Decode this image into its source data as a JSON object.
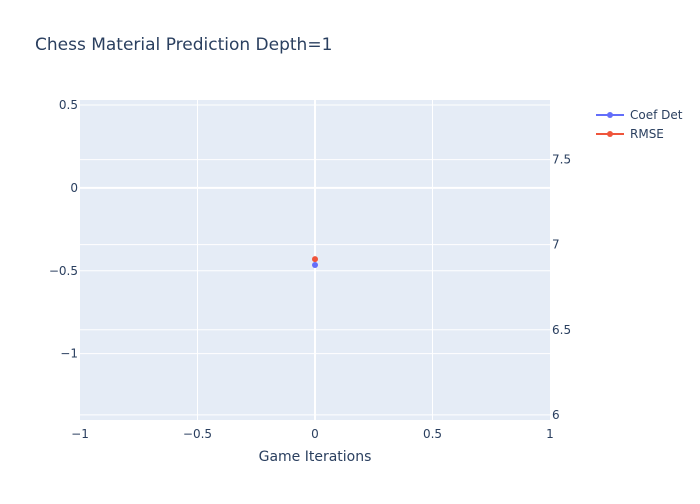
{
  "chart_data": {
    "type": "line",
    "title": "Chess Material Prediction Depth=1",
    "xlabel": "Game Iterations",
    "ylabel": "",
    "y2label": "",
    "xlim": [
      -1,
      1
    ],
    "ylim": [
      -1.4,
      0.53
    ],
    "y2lim": [
      5.97,
      7.85
    ],
    "x_ticks": [
      -1,
      -0.5,
      0,
      0.5,
      1
    ],
    "x_tick_labels": [
      "−1",
      "−0.5",
      "0",
      "0.5",
      "1"
    ],
    "y_ticks": [
      0.5,
      0,
      -0.5,
      -1
    ],
    "y_tick_labels": [
      "0.5",
      "0",
      "−0.5",
      "−1"
    ],
    "y2_ticks": [
      7.5,
      7,
      6.5,
      6
    ],
    "y2_tick_labels": [
      "7.5",
      "7",
      "6.5",
      "6"
    ],
    "grid": true,
    "legend_position": "top-right",
    "series": [
      {
        "name": "Coef Det",
        "axis": "left",
        "color": "#636efa",
        "x": [
          0
        ],
        "y": [
          -0.465
        ]
      },
      {
        "name": "RMSE",
        "axis": "right",
        "color": "#ef553b",
        "x": [
          0
        ],
        "y": [
          6.915
        ]
      }
    ],
    "plot_background": "#e5ecf6",
    "grid_color": "#ffffff"
  }
}
